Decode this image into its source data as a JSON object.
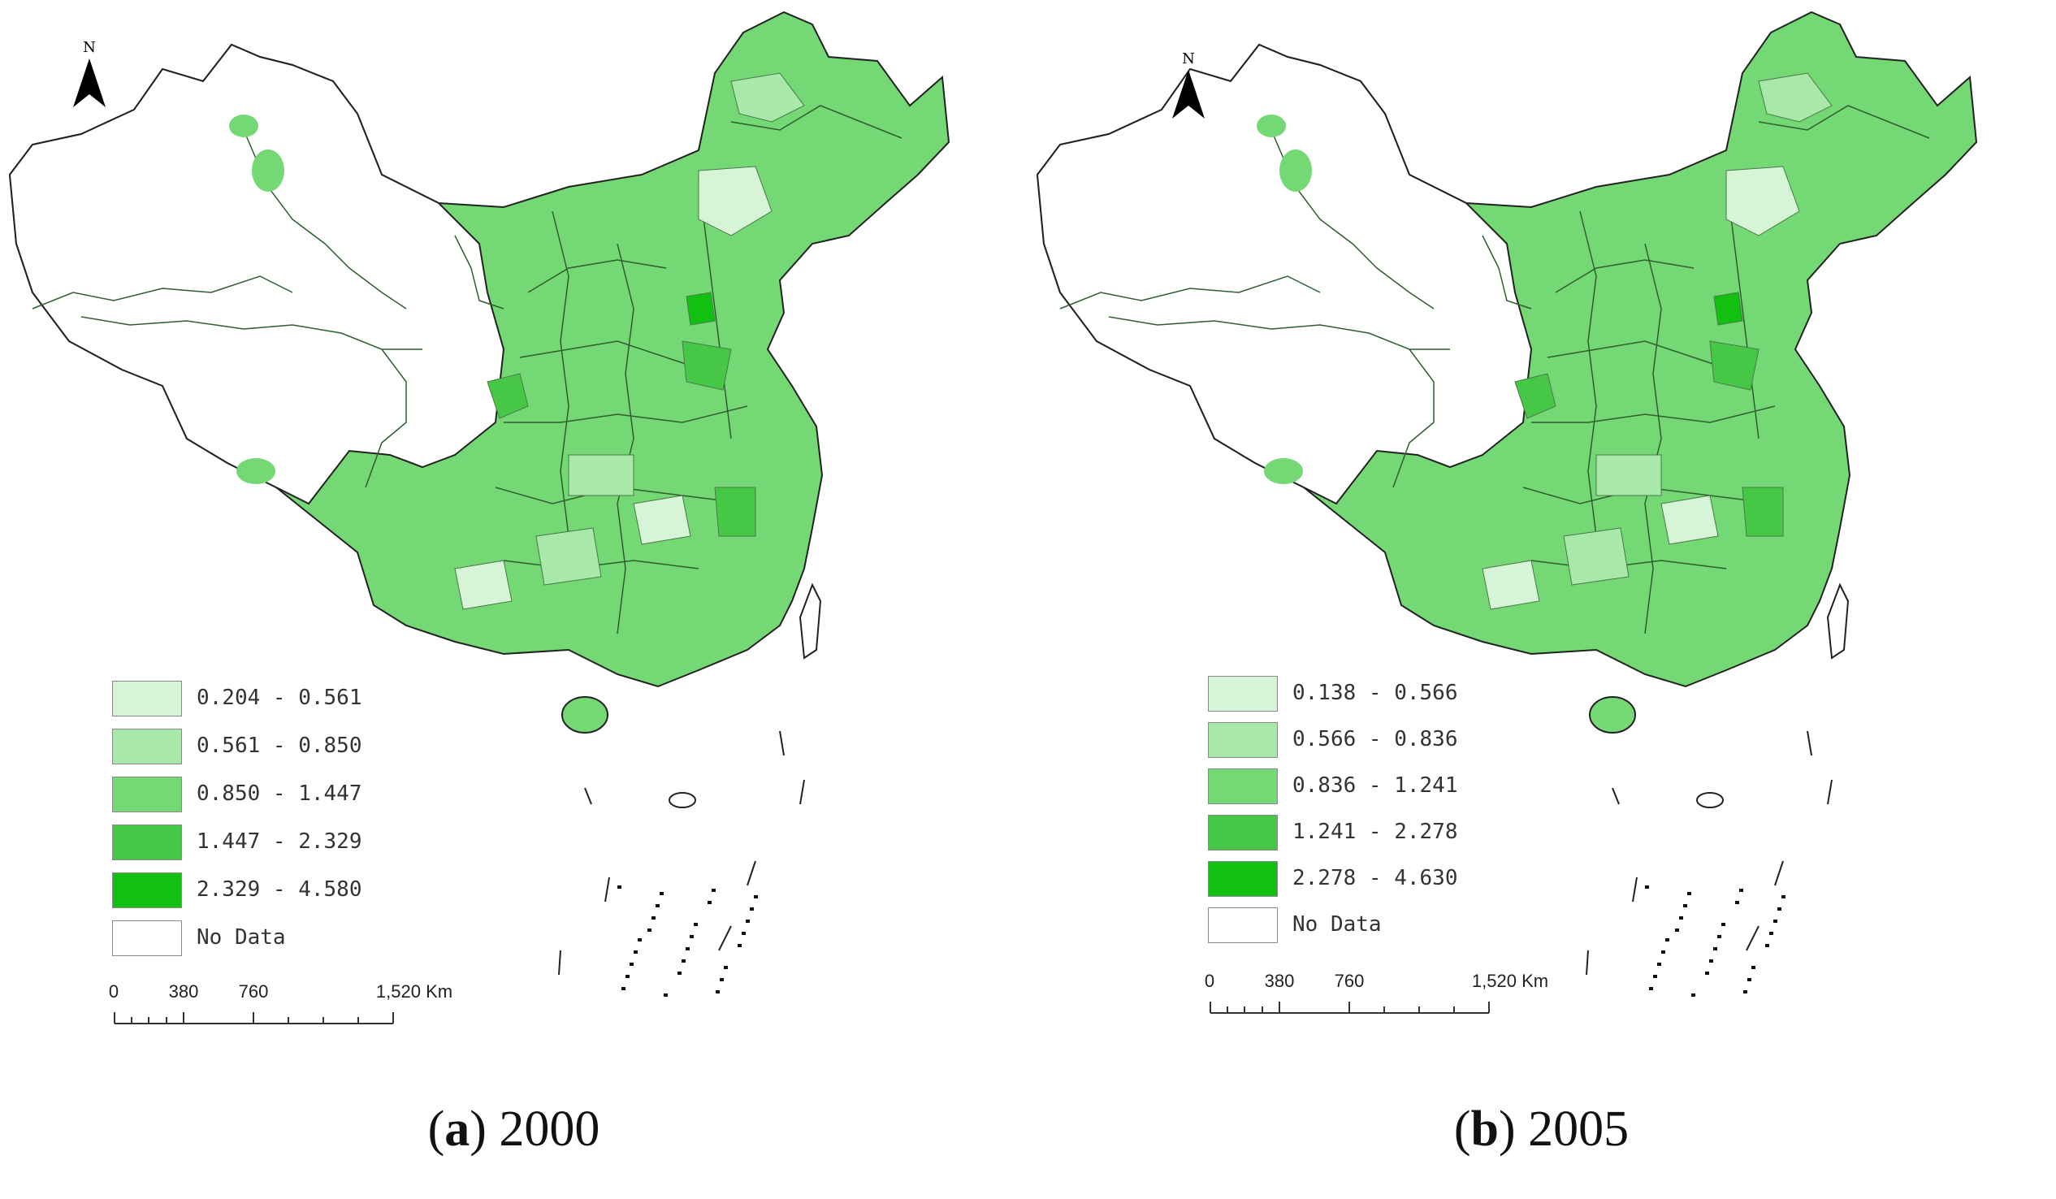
{
  "panels": [
    {
      "id": "a",
      "caption_letter": "a",
      "caption_year": "2000",
      "north_label": "N",
      "legend": [
        {
          "label": "0.204 - 0.561",
          "color": "#d6f5d6"
        },
        {
          "label": "0.561 - 0.850",
          "color": "#a8e8a8"
        },
        {
          "label": "0.850 - 1.447",
          "color": "#74d874"
        },
        {
          "label": "1.447 - 2.329",
          "color": "#46c846"
        },
        {
          "label": "2.329 - 4.580",
          "color": "#12c012"
        },
        {
          "label": "No Data",
          "color": "#ffffff"
        }
      ],
      "scale": {
        "ticks": [
          "0",
          "380",
          "760",
          "1,520 Km"
        ]
      }
    },
    {
      "id": "b",
      "caption_letter": "b",
      "caption_year": "2005",
      "north_label": "N",
      "legend": [
        {
          "label": "0.138 - 0.566",
          "color": "#d6f5d6"
        },
        {
          "label": "0.566 - 0.836",
          "color": "#a8e8a8"
        },
        {
          "label": "0.836 - 1.241",
          "color": "#74d874"
        },
        {
          "label": "1.241 - 2.278",
          "color": "#46c846"
        },
        {
          "label": "2.278 - 4.630",
          "color": "#12c012"
        },
        {
          "label": "No Data",
          "color": "#ffffff"
        }
      ],
      "scale": {
        "ticks": [
          "0",
          "380",
          "760",
          "1,520 Km"
        ]
      }
    }
  ]
}
